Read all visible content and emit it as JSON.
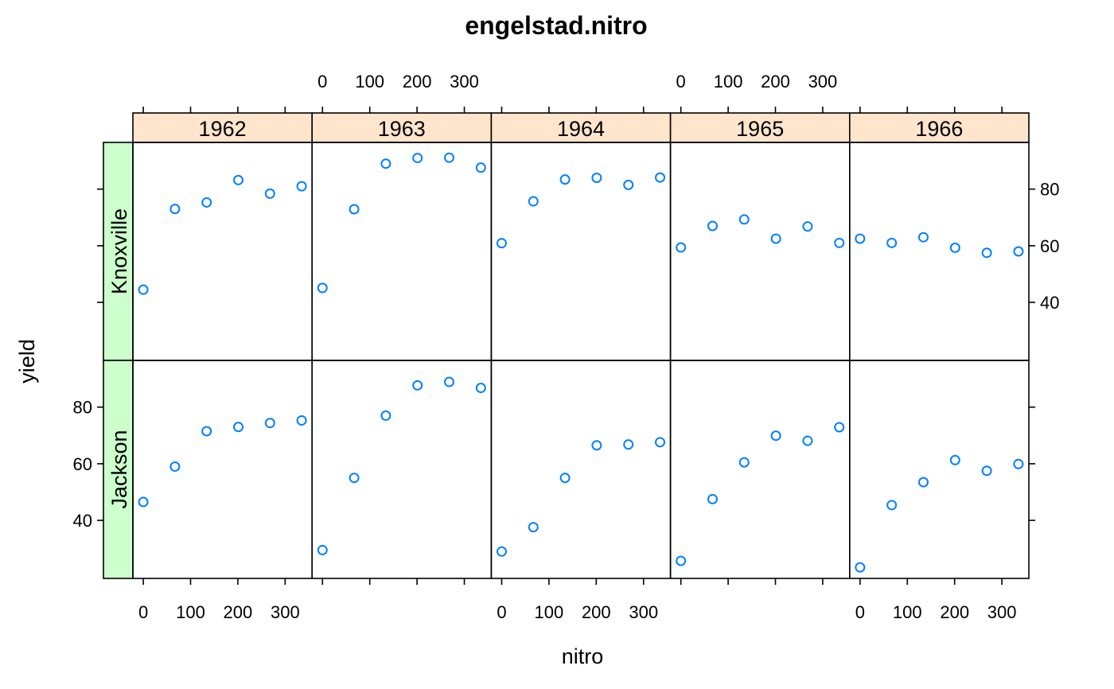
{
  "chart_data": {
    "type": "scatter",
    "title": "engelstad.nitro",
    "xlabel": "nitro",
    "ylabel": "yield",
    "xlim": [
      -22,
      357
    ],
    "ylim": [
      19.5,
      96.5
    ],
    "xticks": [
      0,
      100,
      200,
      300
    ],
    "yticks": [
      40,
      60,
      80
    ],
    "x": [
      0,
      67,
      134,
      201,
      268,
      335
    ],
    "years": [
      "1962",
      "1963",
      "1964",
      "1965",
      "1966"
    ],
    "locations": [
      "Jackson",
      "Knoxville"
    ],
    "point_color": "#0080ff",
    "strip_color_year": "#ffe5cc",
    "strip_color_location": "#ccffcc",
    "panels": [
      {
        "location": "Knoxville",
        "year": "1962",
        "y": [
          44.5,
          73.0,
          75.3,
          83.2,
          78.4,
          81.0
        ]
      },
      {
        "location": "Knoxville",
        "year": "1963",
        "y": [
          45.1,
          72.9,
          89.0,
          91.0,
          91.1,
          87.6
        ]
      },
      {
        "location": "Knoxville",
        "year": "1964",
        "y": [
          60.9,
          75.7,
          83.4,
          84.0,
          81.5,
          84.1
        ]
      },
      {
        "location": "Knoxville",
        "year": "1965",
        "y": [
          59.4,
          67.0,
          69.3,
          62.5,
          66.8,
          61.0
        ]
      },
      {
        "location": "Knoxville",
        "year": "1966",
        "y": [
          62.5,
          61.0,
          63.0,
          59.3,
          57.5,
          58.0
        ]
      },
      {
        "location": "Jackson",
        "year": "1962",
        "y": [
          46.5,
          59.0,
          71.5,
          73.0,
          74.4,
          75.3
        ]
      },
      {
        "location": "Jackson",
        "year": "1963",
        "y": [
          29.5,
          55.0,
          77.0,
          87.7,
          88.9,
          86.8
        ]
      },
      {
        "location": "Jackson",
        "year": "1964",
        "y": [
          29.0,
          37.6,
          55.0,
          66.5,
          66.8,
          67.6
        ]
      },
      {
        "location": "Jackson",
        "year": "1965",
        "y": [
          25.7,
          47.5,
          60.5,
          69.9,
          68.1,
          72.9
        ]
      },
      {
        "location": "Jackson",
        "year": "1966",
        "y": [
          23.4,
          45.4,
          53.5,
          61.3,
          57.5,
          59.9
        ]
      }
    ]
  }
}
